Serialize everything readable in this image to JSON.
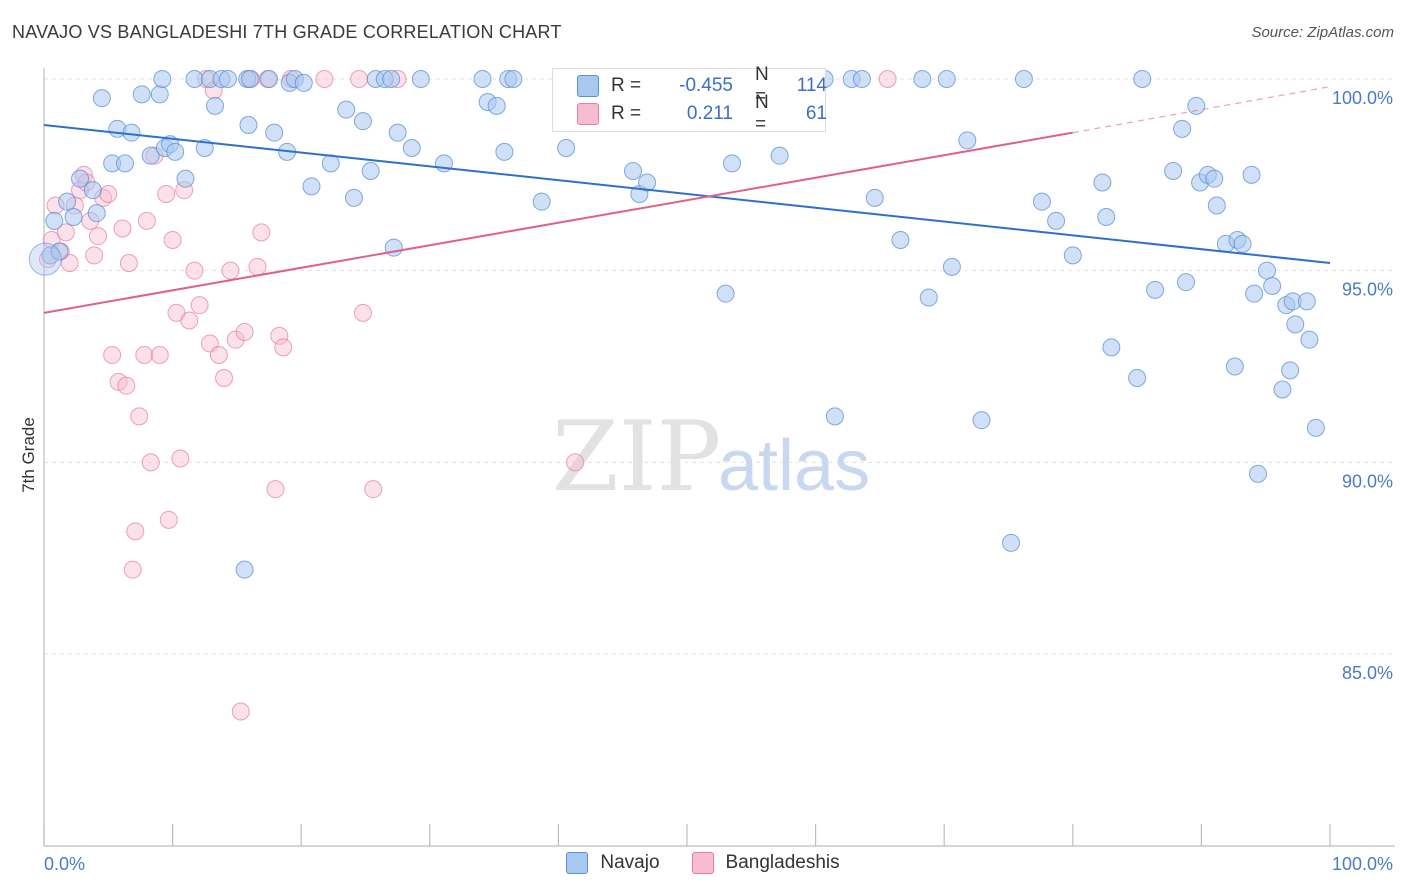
{
  "title": "NAVAJO VS BANGLADESHI 7TH GRADE CORRELATION CHART",
  "source": "Source: ZipAtlas.com",
  "watermark": {
    "zip": "ZIP",
    "atlas": "atlas"
  },
  "colors": {
    "navajo_fill": "#a9c8f0",
    "navajo_stroke": "#5b8fd6",
    "navajo_line": "#2f6fce",
    "bangladeshi_fill": "#f7bcd0",
    "bangladeshi_stroke": "#e87ba0",
    "bangladeshi_line": "#e0608c",
    "grid": "#e3e3e3",
    "tick_text": "#4a7ac8"
  },
  "legend": {
    "navajo": {
      "r_label": "R =",
      "r_value": "-0.455",
      "n_label": "N =",
      "n_value": "114"
    },
    "bangladeshi": {
      "r_label": "R =",
      "r_value": "0.211",
      "n_label": "N =",
      "n_value": "61"
    }
  },
  "bottom_legend": {
    "navajo": "Navajo",
    "bangladeshi": "Bangladeshis"
  },
  "chart_data": {
    "type": "scatter",
    "title": "NAVAJO VS BANGLADESHI 7TH GRADE CORRELATION CHART",
    "xlabel": "",
    "ylabel": "7th Grade",
    "xlim": [
      0,
      100
    ],
    "ylim": [
      80.0,
      100.8
    ],
    "x_tick_labels": [
      "0.0%",
      "100.0%"
    ],
    "y_ticks": [
      85,
      90,
      95,
      100
    ],
    "y_tick_labels": [
      "85.0%",
      "90.0%",
      "95.0%",
      "100.0%"
    ],
    "grid": "horizontal dashed",
    "legend_position": "top-center",
    "series": [
      {
        "name": "Navajo",
        "r": -0.455,
        "n": 114,
        "trend": {
          "x": [
            0,
            100
          ],
          "y": [
            98.8,
            95.2
          ]
        },
        "points": [
          [
            0.5,
            95.4
          ],
          [
            0.8,
            96.3
          ],
          [
            1.2,
            95.5
          ],
          [
            1.8,
            96.8
          ],
          [
            2.3,
            96.4
          ],
          [
            2.8,
            97.4
          ],
          [
            3.8,
            97.1
          ],
          [
            4.1,
            96.5
          ],
          [
            4.5,
            99.5
          ],
          [
            5.3,
            97.8
          ],
          [
            5.7,
            98.7
          ],
          [
            6.3,
            97.8
          ],
          [
            6.8,
            98.6
          ],
          [
            7.6,
            99.6
          ],
          [
            8.3,
            98.0
          ],
          [
            9.0,
            99.6
          ],
          [
            9.4,
            98.2
          ],
          [
            9.8,
            98.3
          ],
          [
            10.2,
            98.1
          ],
          [
            11.0,
            97.4
          ],
          [
            11.7,
            100.0
          ],
          [
            12.5,
            98.2
          ],
          [
            12.9,
            100.0
          ],
          [
            13.3,
            99.3
          ],
          [
            13.8,
            100.0
          ],
          [
            14.3,
            100.0
          ],
          [
            15.6,
            87.2
          ],
          [
            15.8,
            100.0
          ],
          [
            15.9,
            98.8
          ],
          [
            16.0,
            100.0
          ],
          [
            17.5,
            100.0
          ],
          [
            17.9,
            98.6
          ],
          [
            18.9,
            98.1
          ],
          [
            19.1,
            99.9
          ],
          [
            19.5,
            100.0
          ],
          [
            20.2,
            99.9
          ],
          [
            20.8,
            97.2
          ],
          [
            22.3,
            97.8
          ],
          [
            23.5,
            99.2
          ],
          [
            24.1,
            96.9
          ],
          [
            24.8,
            98.9
          ],
          [
            25.4,
            97.6
          ],
          [
            25.8,
            100.0
          ],
          [
            26.5,
            100.0
          ],
          [
            27.2,
            95.6
          ],
          [
            27.5,
            98.6
          ],
          [
            28.6,
            98.2
          ],
          [
            29.3,
            100.0
          ],
          [
            31.1,
            97.8
          ],
          [
            34.1,
            100.0
          ],
          [
            34.5,
            99.4
          ],
          [
            35.2,
            99.3
          ],
          [
            35.8,
            98.1
          ],
          [
            36.1,
            100.0
          ],
          [
            36.5,
            100.0
          ],
          [
            38.7,
            96.8
          ],
          [
            40.6,
            98.2
          ],
          [
            45.8,
            97.6
          ],
          [
            46.3,
            97.0
          ],
          [
            46.9,
            97.3
          ],
          [
            52.6,
            100.0
          ],
          [
            53.0,
            94.4
          ],
          [
            53.5,
            97.8
          ],
          [
            57.2,
            98.0
          ],
          [
            60.7,
            100.0
          ],
          [
            61.5,
            91.2
          ],
          [
            62.8,
            100.0
          ],
          [
            63.6,
            100.0
          ],
          [
            64.6,
            96.9
          ],
          [
            66.6,
            95.8
          ],
          [
            68.3,
            100.0
          ],
          [
            68.8,
            94.3
          ],
          [
            70.2,
            100.0
          ],
          [
            70.6,
            95.1
          ],
          [
            71.8,
            98.4
          ],
          [
            72.9,
            91.1
          ],
          [
            75.2,
            87.9
          ],
          [
            76.2,
            100.0
          ],
          [
            77.6,
            96.8
          ],
          [
            78.7,
            96.3
          ],
          [
            80.0,
            95.4
          ],
          [
            82.3,
            97.3
          ],
          [
            82.6,
            96.4
          ],
          [
            83.0,
            93.0
          ],
          [
            85.0,
            92.2
          ],
          [
            85.4,
            100.0
          ],
          [
            86.4,
            94.5
          ],
          [
            87.8,
            97.6
          ],
          [
            88.5,
            98.7
          ],
          [
            88.8,
            94.7
          ],
          [
            89.6,
            99.3
          ],
          [
            89.9,
            97.3
          ],
          [
            90.5,
            97.5
          ],
          [
            91.0,
            97.4
          ],
          [
            91.2,
            96.7
          ],
          [
            91.9,
            95.7
          ],
          [
            92.6,
            92.5
          ],
          [
            92.8,
            95.8
          ],
          [
            93.2,
            95.7
          ],
          [
            93.9,
            97.5
          ],
          [
            94.1,
            94.4
          ],
          [
            94.4,
            89.7
          ],
          [
            95.1,
            95.0
          ],
          [
            95.5,
            94.6
          ],
          [
            96.3,
            91.9
          ],
          [
            96.6,
            94.1
          ],
          [
            96.9,
            92.4
          ],
          [
            97.1,
            94.2
          ],
          [
            97.3,
            93.6
          ],
          [
            98.2,
            94.2
          ],
          [
            98.4,
            93.2
          ],
          [
            98.9,
            90.9
          ],
          [
            9.2,
            100.0
          ],
          [
            27.0,
            100.0
          ]
        ]
      },
      {
        "name": "Bangladeshis",
        "r": 0.211,
        "n": 61,
        "trend": {
          "x": [
            0,
            80
          ],
          "y": [
            93.9,
            98.6
          ]
        },
        "trend_dashed": {
          "x": [
            80,
            100
          ],
          "y": [
            98.6,
            99.8
          ]
        },
        "points": [
          [
            0.3,
            95.3
          ],
          [
            0.6,
            95.8
          ],
          [
            0.9,
            96.7
          ],
          [
            1.3,
            95.5
          ],
          [
            1.7,
            96.0
          ],
          [
            2.0,
            95.2
          ],
          [
            2.4,
            96.7
          ],
          [
            2.8,
            97.1
          ],
          [
            3.1,
            97.5
          ],
          [
            3.6,
            96.3
          ],
          [
            3.9,
            95.4
          ],
          [
            4.2,
            95.9
          ],
          [
            4.6,
            96.9
          ],
          [
            5.0,
            97.0
          ],
          [
            5.3,
            92.8
          ],
          [
            5.8,
            92.1
          ],
          [
            6.1,
            96.1
          ],
          [
            6.4,
            92.0
          ],
          [
            6.6,
            95.2
          ],
          [
            6.9,
            87.2
          ],
          [
            7.1,
            88.2
          ],
          [
            7.4,
            91.2
          ],
          [
            7.8,
            92.8
          ],
          [
            8.0,
            96.3
          ],
          [
            8.3,
            90.0
          ],
          [
            8.6,
            98.0
          ],
          [
            9.0,
            92.8
          ],
          [
            9.5,
            97.0
          ],
          [
            9.7,
            88.5
          ],
          [
            10.0,
            95.8
          ],
          [
            10.3,
            93.9
          ],
          [
            10.6,
            90.1
          ],
          [
            10.9,
            97.1
          ],
          [
            11.3,
            93.7
          ],
          [
            11.7,
            95.0
          ],
          [
            12.1,
            94.1
          ],
          [
            12.6,
            100.0
          ],
          [
            12.9,
            93.1
          ],
          [
            13.2,
            99.7
          ],
          [
            13.6,
            92.8
          ],
          [
            14.0,
            92.2
          ],
          [
            14.5,
            95.0
          ],
          [
            14.9,
            93.2
          ],
          [
            15.3,
            83.5
          ],
          [
            15.6,
            93.4
          ],
          [
            16.1,
            100.0
          ],
          [
            16.6,
            95.1
          ],
          [
            16.9,
            96.0
          ],
          [
            17.4,
            100.0
          ],
          [
            18.0,
            89.3
          ],
          [
            18.3,
            93.3
          ],
          [
            18.6,
            93.0
          ],
          [
            19.2,
            100.0
          ],
          [
            21.8,
            100.0
          ],
          [
            24.5,
            100.0
          ],
          [
            24.8,
            93.9
          ],
          [
            25.6,
            89.3
          ],
          [
            27.5,
            100.0
          ],
          [
            41.3,
            90.0
          ],
          [
            65.6,
            100.0
          ],
          [
            3.3,
            97.3
          ]
        ]
      }
    ]
  }
}
